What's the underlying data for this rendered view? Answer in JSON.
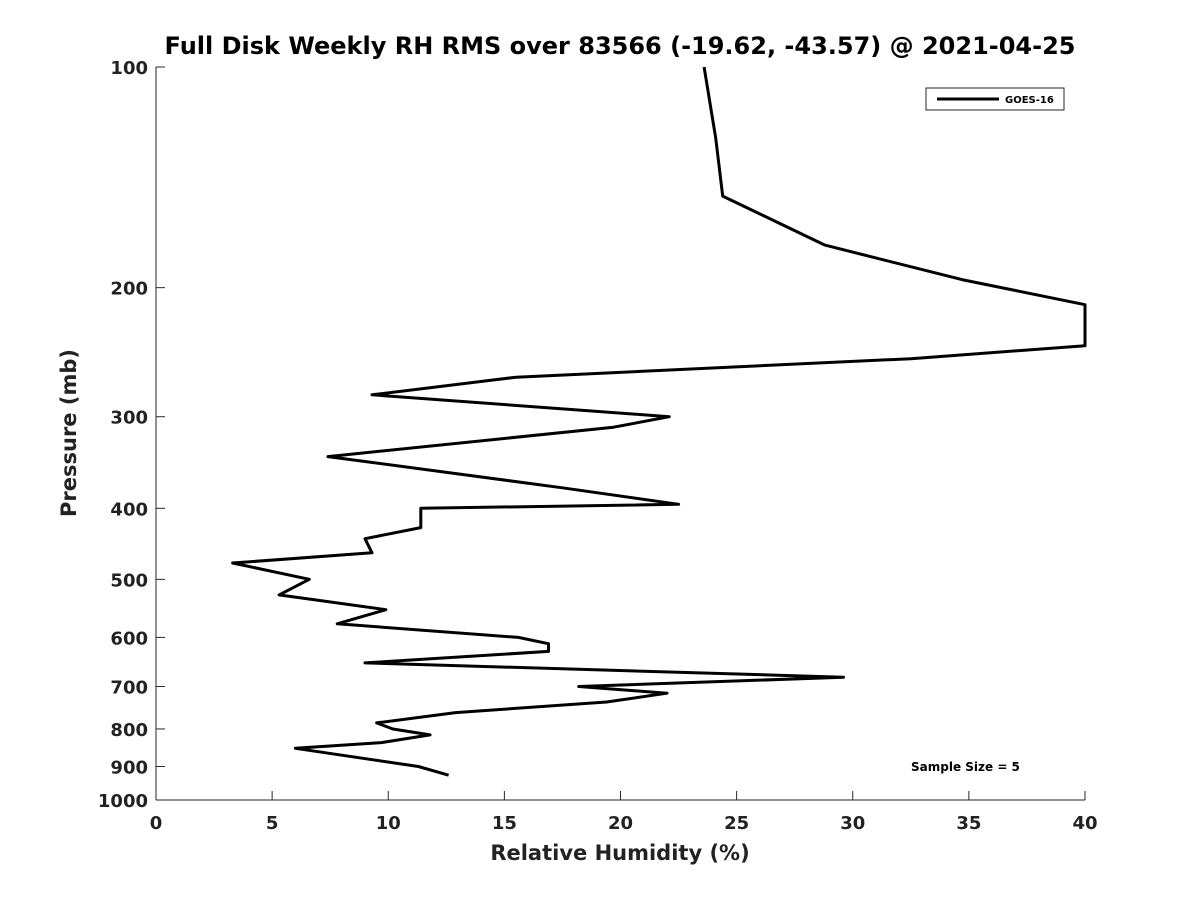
{
  "chart_data": {
    "type": "line",
    "title": "Full Disk Weekly RH RMS over 83566 (-19.62, -43.57) @ 2021-04-25",
    "xlabel": "Relative Humidity (%)",
    "ylabel": "Pressure (mb)",
    "xlim": [
      0,
      40
    ],
    "ylim": [
      100,
      1000
    ],
    "y_scale": "log",
    "y_reversed": true,
    "x_ticks": [
      "0",
      "5",
      "10",
      "15",
      "20",
      "25",
      "30",
      "35",
      "40"
    ],
    "y_ticks": [
      "100",
      "200",
      "300",
      "400",
      "500",
      "600",
      "700",
      "800",
      "900",
      "1000"
    ],
    "grid": false,
    "legend_position": "top-right",
    "annotation": "Sample Size = 5",
    "series": [
      {
        "name": "GOES-16",
        "color": "#000000",
        "points": [
          [
            23.6,
            100
          ],
          [
            24.1,
            125
          ],
          [
            24.4,
            150
          ],
          [
            28.8,
            175
          ],
          [
            34.7,
            195
          ],
          [
            40.0,
            211
          ],
          [
            40.0,
            240
          ],
          [
            32.5,
            250
          ],
          [
            15.5,
            265
          ],
          [
            9.3,
            280
          ],
          [
            22.1,
            300
          ],
          [
            19.7,
            310
          ],
          [
            7.4,
            340
          ],
          [
            17.5,
            375
          ],
          [
            22.5,
            395
          ],
          [
            11.4,
            400
          ],
          [
            11.4,
            425
          ],
          [
            9.0,
            440
          ],
          [
            9.3,
            460
          ],
          [
            3.3,
            475
          ],
          [
            6.6,
            500
          ],
          [
            5.3,
            525
          ],
          [
            9.9,
            550
          ],
          [
            7.8,
            575
          ],
          [
            15.6,
            600
          ],
          [
            16.9,
            612
          ],
          [
            16.9,
            627
          ],
          [
            9.0,
            650
          ],
          [
            29.6,
            680
          ],
          [
            18.2,
            700
          ],
          [
            22.0,
            715
          ],
          [
            19.4,
            735
          ],
          [
            12.9,
            760
          ],
          [
            9.5,
            785
          ],
          [
            10.2,
            800
          ],
          [
            11.8,
            815
          ],
          [
            9.7,
            835
          ],
          [
            6.0,
            850
          ],
          [
            9.2,
            880
          ],
          [
            11.3,
            900
          ],
          [
            12.6,
            925
          ]
        ]
      }
    ]
  }
}
